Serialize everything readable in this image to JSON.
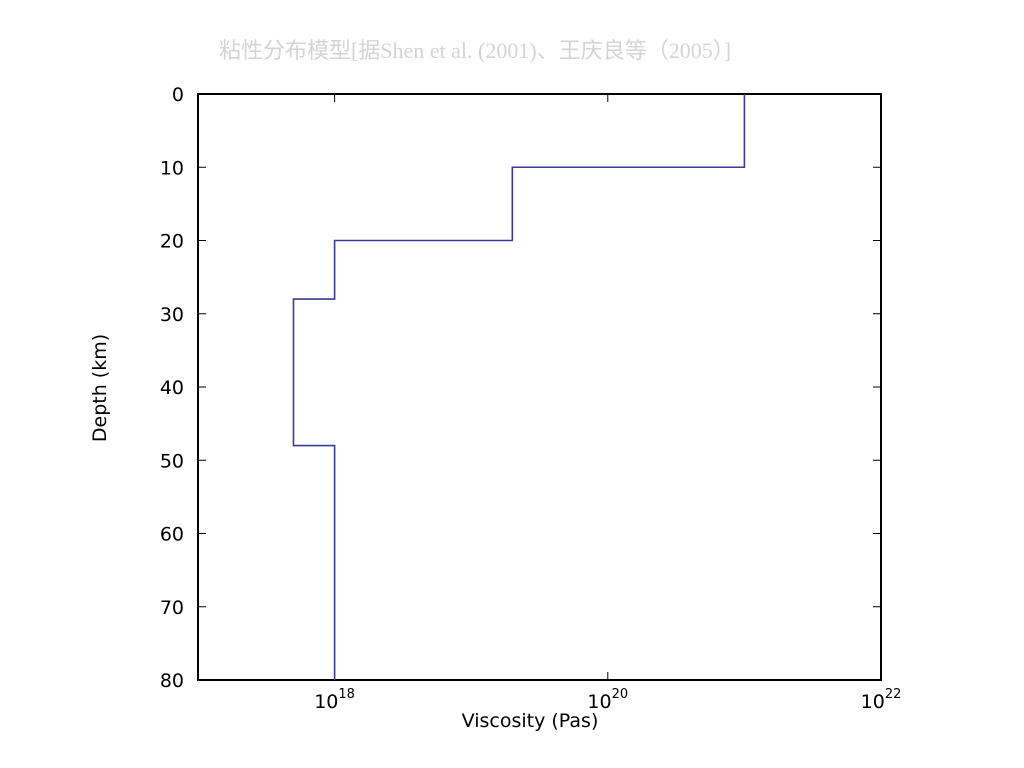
{
  "chart_data": {
    "type": "line",
    "title": "粘性分布模型[据Shen et al. (2001)、王庆良等（2005）]",
    "x_label": "Viscosity (Pas)",
    "y_label": "Depth (km)",
    "xscale": "log",
    "y_inverted": true,
    "xlim": [
      1e+17,
      1e+22
    ],
    "xticks": [
      {
        "value": 1e+18,
        "label": "10",
        "exponent": "18"
      },
      {
        "value": 1e+20,
        "label": "10",
        "exponent": "20"
      },
      {
        "value": 1e+22,
        "label": "10",
        "exponent": "22"
      }
    ],
    "ylim": [
      0,
      80
    ],
    "yticks": [
      0,
      10,
      20,
      30,
      40,
      50,
      60,
      70,
      80
    ],
    "series": [
      {
        "color": "#3b3b9c",
        "x": [
          1e+21,
          1e+21,
          2e+19,
          2e+19,
          1e+18,
          1e+18,
          5e+17,
          5e+17,
          1e+18,
          1e+18
        ],
        "values": [
          0,
          10,
          10,
          20,
          20,
          28,
          28,
          48,
          48,
          80
        ]
      }
    ]
  }
}
